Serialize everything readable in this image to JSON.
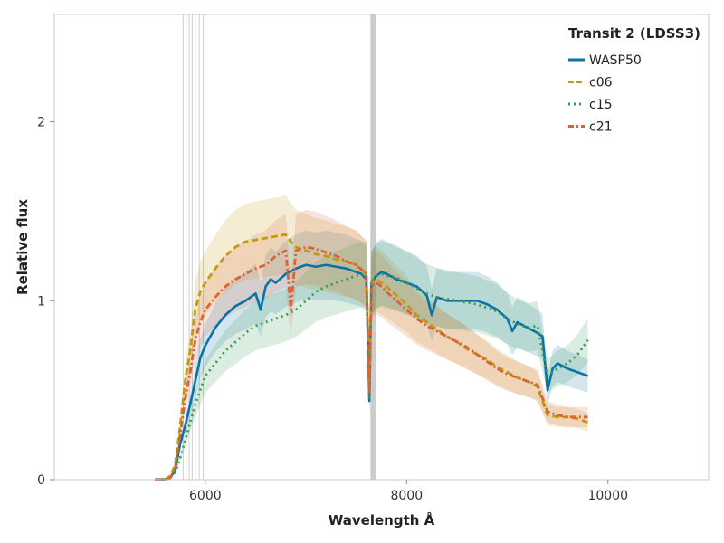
{
  "chart_data": {
    "type": "line",
    "xlabel": "Wavelength Å",
    "ylabel": "Relative flux",
    "xlim": [
      4500,
      11000
    ],
    "ylim": [
      0,
      2.6
    ],
    "xticks": [
      6000,
      8000,
      10000
    ],
    "yticks": [
      0,
      1,
      2
    ],
    "legend": {
      "title": "Transit 2 (LDSS3)",
      "position": "top-right",
      "entries": [
        "WASP50",
        "c06",
        "c15",
        "c21"
      ]
    },
    "masked_lines": [
      5780,
      5810,
      5840,
      5870,
      5900,
      5940,
      5980
    ],
    "masked_band": [
      7640,
      7700
    ],
    "series": [
      {
        "name": "WASP50",
        "color": "#0a72a6",
        "dash": "solid",
        "x": [
          5500,
          5600,
          5650,
          5700,
          5750,
          5800,
          5850,
          5900,
          5950,
          6000,
          6100,
          6200,
          6300,
          6400,
          6500,
          6550,
          6600,
          6650,
          6700,
          6800,
          6900,
          7000,
          7100,
          7200,
          7300,
          7400,
          7500,
          7550,
          7600,
          7630,
          7650,
          7700,
          7750,
          7800,
          7900,
          8000,
          8100,
          8200,
          8250,
          8300,
          8400,
          8500,
          8600,
          8700,
          8800,
          8900,
          9000,
          9050,
          9100,
          9200,
          9300,
          9350,
          9400,
          9450,
          9500,
          9600,
          9700,
          9800
        ],
        "y": [
          0.0,
          0.0,
          0.01,
          0.05,
          0.2,
          0.3,
          0.42,
          0.55,
          0.68,
          0.75,
          0.85,
          0.92,
          0.97,
          1.0,
          1.04,
          0.95,
          1.08,
          1.12,
          1.1,
          1.15,
          1.18,
          1.2,
          1.19,
          1.2,
          1.19,
          1.18,
          1.16,
          1.15,
          1.12,
          0.44,
          1.1,
          1.14,
          1.16,
          1.15,
          1.12,
          1.1,
          1.08,
          1.03,
          0.92,
          1.02,
          1.0,
          1.0,
          1.0,
          1.0,
          0.98,
          0.95,
          0.9,
          0.83,
          0.88,
          0.85,
          0.82,
          0.8,
          0.5,
          0.62,
          0.65,
          0.62,
          0.6,
          0.58
        ]
      },
      {
        "name": "c06",
        "color": "#c29a10",
        "dash": "dash",
        "x": [
          5500,
          5600,
          5650,
          5700,
          5750,
          5800,
          5850,
          5900,
          5950,
          6000,
          6100,
          6200,
          6300,
          6400,
          6500,
          6600,
          6700,
          6800,
          6850,
          6900,
          7000,
          7100,
          7200,
          7300,
          7400,
          7500,
          7600,
          7630,
          7650,
          7700,
          7750,
          7800,
          7900,
          8000,
          8100,
          8200,
          8300,
          8400,
          8500,
          8600,
          8700,
          8800,
          8900,
          9000,
          9100,
          9200,
          9300,
          9400,
          9500,
          9600,
          9700,
          9800
        ],
        "y": [
          0.0,
          0.0,
          0.02,
          0.08,
          0.3,
          0.55,
          0.72,
          0.95,
          1.05,
          1.1,
          1.18,
          1.25,
          1.3,
          1.33,
          1.34,
          1.35,
          1.36,
          1.37,
          1.33,
          1.3,
          1.28,
          1.26,
          1.25,
          1.23,
          1.22,
          1.2,
          1.15,
          0.5,
          1.1,
          1.12,
          1.1,
          1.08,
          1.03,
          0.98,
          0.92,
          0.88,
          0.84,
          0.8,
          0.77,
          0.73,
          0.7,
          0.67,
          0.63,
          0.6,
          0.57,
          0.55,
          0.52,
          0.36,
          0.35,
          0.35,
          0.34,
          0.32
        ]
      },
      {
        "name": "c15",
        "color": "#3a9a55",
        "dash": "dot",
        "x": [
          5500,
          5600,
          5650,
          5700,
          5750,
          5800,
          5850,
          5900,
          5950,
          6000,
          6100,
          6200,
          6300,
          6400,
          6500,
          6600,
          6700,
          6800,
          6900,
          7000,
          7100,
          7200,
          7300,
          7400,
          7500,
          7600,
          7630,
          7650,
          7700,
          7750,
          7800,
          7900,
          8000,
          8100,
          8200,
          8300,
          8400,
          8500,
          8600,
          8700,
          8800,
          8900,
          9000,
          9100,
          9200,
          9300,
          9400,
          9500,
          9600,
          9700,
          9800
        ],
        "y": [
          0.0,
          0.0,
          0.01,
          0.04,
          0.12,
          0.22,
          0.32,
          0.42,
          0.5,
          0.58,
          0.65,
          0.72,
          0.77,
          0.82,
          0.86,
          0.88,
          0.9,
          0.92,
          0.95,
          1.0,
          1.05,
          1.08,
          1.1,
          1.12,
          1.14,
          1.15,
          0.45,
          1.1,
          1.14,
          1.15,
          1.14,
          1.13,
          1.1,
          1.07,
          1.04,
          1.02,
          1.01,
          1.0,
          0.99,
          0.98,
          0.96,
          0.94,
          0.9,
          0.87,
          0.85,
          0.86,
          0.58,
          0.62,
          0.65,
          0.7,
          0.78
        ]
      },
      {
        "name": "c21",
        "color": "#d9623b",
        "dash": "dashdot",
        "x": [
          5500,
          5600,
          5650,
          5700,
          5750,
          5800,
          5850,
          5900,
          5950,
          6000,
          6100,
          6200,
          6300,
          6400,
          6500,
          6600,
          6700,
          6800,
          6850,
          6900,
          7000,
          7100,
          7200,
          7300,
          7400,
          7500,
          7600,
          7630,
          7650,
          7700,
          7750,
          7800,
          7900,
          8000,
          8100,
          8200,
          8300,
          8400,
          8500,
          8600,
          8700,
          8800,
          8900,
          9000,
          9100,
          9200,
          9300,
          9400,
          9500,
          9600,
          9700,
          9800
        ],
        "y": [
          0.0,
          0.0,
          0.01,
          0.06,
          0.25,
          0.45,
          0.6,
          0.78,
          0.88,
          0.95,
          1.02,
          1.08,
          1.12,
          1.15,
          1.18,
          1.2,
          1.25,
          1.28,
          0.95,
          1.28,
          1.3,
          1.29,
          1.27,
          1.25,
          1.22,
          1.2,
          1.15,
          0.48,
          1.08,
          1.1,
          1.08,
          1.05,
          1.0,
          0.95,
          0.9,
          0.86,
          0.83,
          0.8,
          0.77,
          0.74,
          0.7,
          0.66,
          0.62,
          0.59,
          0.57,
          0.55,
          0.53,
          0.38,
          0.36,
          0.35,
          0.35,
          0.35
        ]
      }
    ]
  }
}
